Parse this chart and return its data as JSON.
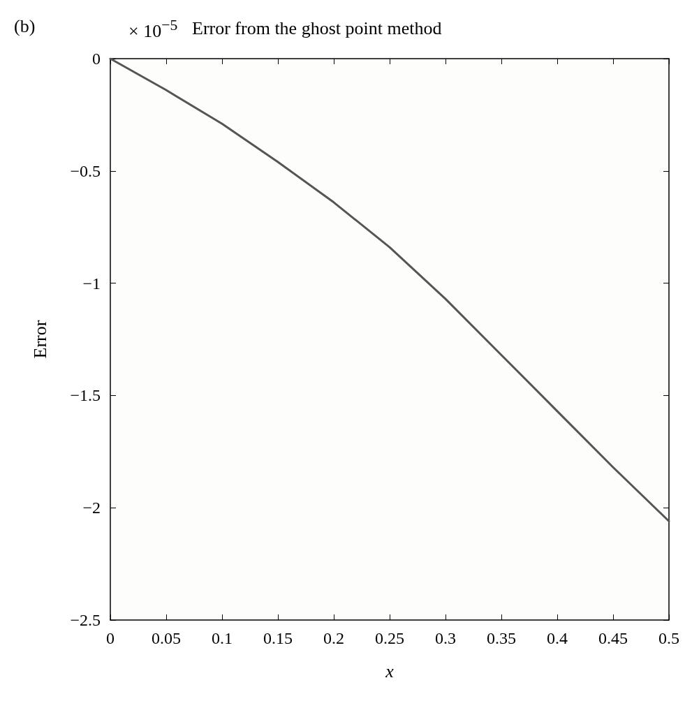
{
  "chart_data": {
    "type": "line",
    "title": "Error from the ghost point method",
    "xlabel": "x",
    "ylabel": "Error",
    "annotations": [
      "(b)",
      "× 10$^{−5}$"
    ],
    "x": [
      0,
      0.05,
      0.1,
      0.15,
      0.2,
      0.25,
      0.3,
      0.35,
      0.4,
      0.45,
      0.5
    ],
    "series": [
      {
        "color": "#555555",
        "values": [
          0,
          -0.14,
          -0.29,
          -0.46,
          -0.64,
          -0.84,
          -1.07,
          -1.32,
          -1.57,
          -1.82,
          -2.06
        ]
      }
    ],
    "xlim": [
      0,
      0.5
    ],
    "xticks": [
      0,
      0.05,
      0.1,
      0.15,
      0.2,
      0.25,
      0.3,
      0.35,
      0.4,
      0.45,
      0.5
    ],
    "ylim": [
      -2.5,
      0
    ],
    "yticks": [
      -2.5,
      -2,
      -1.5,
      -1,
      -0.5,
      0
    ],
    "grid": false,
    "marker": "none",
    "line_style": "solid"
  }
}
